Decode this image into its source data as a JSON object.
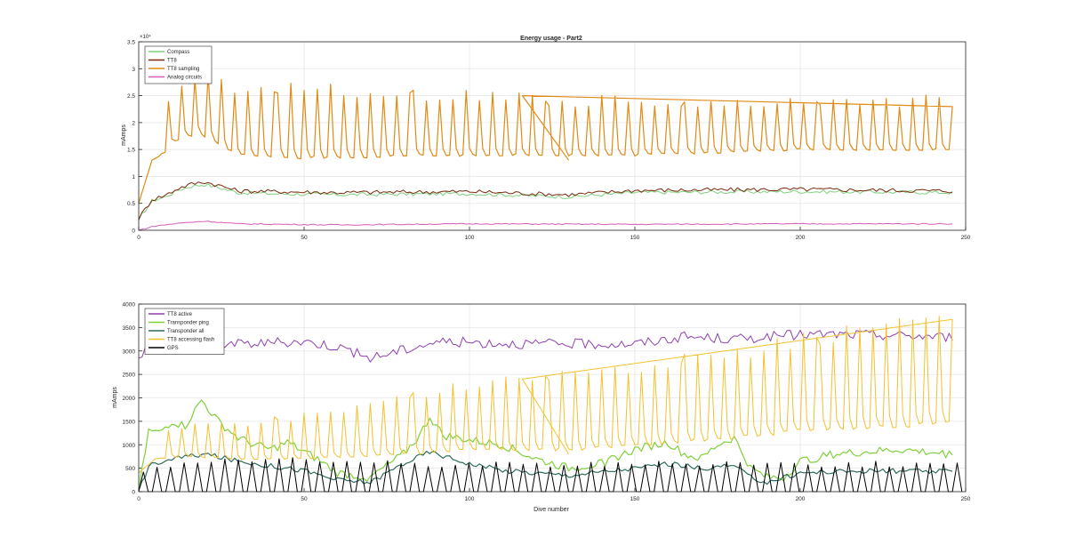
{
  "colors": {
    "compass": "#7fd17f",
    "tt8": "#7a2a0c",
    "tt8_sampling": "#e08a14",
    "analog": "#d65cb8",
    "tt8_active": "#8e3fb0",
    "transponder_ping": "#7fd13a",
    "transponder_all": "#2f6b5e",
    "tt8_flash": "#f2c12e",
    "gps": "#000000",
    "grid": "#e6e6e6",
    "axis": "#262626"
  },
  "chart_data": [
    {
      "type": "line",
      "title": "Energy usage - Part2",
      "xlabel": "",
      "ylabel": "mAmps",
      "xlim": [
        0,
        250
      ],
      "ylim": [
        0,
        3.5
      ],
      "y_exponent_label": "×10⁴",
      "grid": true,
      "legend_position": "top-left",
      "xticks": [
        "0",
        "50",
        "100",
        "150",
        "200",
        "250"
      ],
      "yticks": [
        "0",
        "0.5",
        "1",
        "1.5",
        "2",
        "2.5",
        "3",
        "3.5"
      ],
      "series": [
        {
          "name": "Compass",
          "color_key": "compass",
          "kind": "noisy",
          "lw": 1,
          "anchors": [
            [
              0,
              0.2
            ],
            [
              4,
              0.55
            ],
            [
              8,
              0.62
            ],
            [
              12,
              0.75
            ],
            [
              16,
              0.82
            ],
            [
              20,
              0.85
            ],
            [
              25,
              0.78
            ],
            [
              30,
              0.7
            ],
            [
              40,
              0.68
            ],
            [
              60,
              0.66
            ],
            [
              100,
              0.68
            ],
            [
              130,
              0.62
            ],
            [
              150,
              0.7
            ],
            [
              200,
              0.72
            ],
            [
              246,
              0.7
            ]
          ],
          "noise": 0.035
        },
        {
          "name": "TT8",
          "color_key": "tt8",
          "kind": "noisy",
          "lw": 1,
          "anchors": [
            [
              0,
              0.22
            ],
            [
              4,
              0.57
            ],
            [
              8,
              0.65
            ],
            [
              12,
              0.78
            ],
            [
              16,
              0.86
            ],
            [
              20,
              0.9
            ],
            [
              25,
              0.82
            ],
            [
              30,
              0.73
            ],
            [
              40,
              0.72
            ],
            [
              60,
              0.7
            ],
            [
              100,
              0.72
            ],
            [
              130,
              0.66
            ],
            [
              150,
              0.74
            ],
            [
              200,
              0.76
            ],
            [
              246,
              0.73
            ]
          ],
          "noise": 0.04
        },
        {
          "name": "TT8 sampling",
          "color_key": "tt8_sampling",
          "kind": "spiky",
          "lw": 1.2,
          "base": [
            [
              0,
              0.5
            ],
            [
              2,
              0.9
            ],
            [
              4,
              1.3
            ],
            [
              8,
              1.45
            ],
            [
              12,
              1.7
            ],
            [
              18,
              1.8
            ],
            [
              22,
              1.7
            ],
            [
              30,
              1.4
            ],
            [
              50,
              1.35
            ],
            [
              100,
              1.4
            ],
            [
              150,
              1.4
            ],
            [
              200,
              1.5
            ],
            [
              246,
              1.5
            ]
          ],
          "peak": [
            [
              0,
              0.5
            ],
            [
              10,
              2.8
            ],
            [
              20,
              3.2
            ],
            [
              30,
              2.6
            ],
            [
              50,
              2.8
            ],
            [
              100,
              2.6
            ],
            [
              150,
              2.5
            ],
            [
              200,
              2.5
            ],
            [
              246,
              2.55
            ]
          ],
          "period": 4.1,
          "gap": [
            116,
            130,
            2.5,
            1.3
          ]
        },
        {
          "name": "Analog circuits",
          "color_key": "analog",
          "kind": "noisy",
          "lw": 1,
          "anchors": [
            [
              0,
              0.0
            ],
            [
              5,
              0.08
            ],
            [
              12,
              0.13
            ],
            [
              20,
              0.17
            ],
            [
              30,
              0.12
            ],
            [
              60,
              0.1
            ],
            [
              100,
              0.12
            ],
            [
              150,
              0.11
            ],
            [
              200,
              0.12
            ],
            [
              246,
              0.12
            ]
          ],
          "noise": 0.01
        }
      ]
    },
    {
      "type": "line",
      "title": "",
      "xlabel": "Dive number",
      "ylabel": "mAmps",
      "xlim": [
        0,
        250
      ],
      "ylim": [
        0,
        4000
      ],
      "grid": true,
      "legend_position": "top-left",
      "xticks": [
        "0",
        "50",
        "100",
        "150",
        "200",
        "250"
      ],
      "yticks": [
        "0",
        "500",
        "1000",
        "1500",
        "2000",
        "2500",
        "3000",
        "3500",
        "4000"
      ],
      "series": [
        {
          "name": "TT8 active",
          "color_key": "tt8_active",
          "kind": "noisy",
          "lw": 1,
          "anchors": [
            [
              0,
              2900
            ],
            [
              3,
              3100
            ],
            [
              10,
              3250
            ],
            [
              30,
              3150
            ],
            [
              50,
              3200
            ],
            [
              60,
              3100
            ],
            [
              70,
              2850
            ],
            [
              90,
              3200
            ],
            [
              120,
              3150
            ],
            [
              150,
              3150
            ],
            [
              165,
              3300
            ],
            [
              180,
              3250
            ],
            [
              200,
              3350
            ],
            [
              220,
              3350
            ],
            [
              246,
              3300
            ]
          ],
          "noise": 110
        },
        {
          "name": "Transponder ping",
          "color_key": "transponder_ping",
          "kind": "noisy",
          "lw": 1.2,
          "anchors": [
            [
              0,
              0
            ],
            [
              3,
              1300
            ],
            [
              6,
              1250
            ],
            [
              10,
              1500
            ],
            [
              14,
              1400
            ],
            [
              19,
              1950
            ],
            [
              24,
              1500
            ],
            [
              30,
              1150
            ],
            [
              35,
              1000
            ],
            [
              40,
              900
            ],
            [
              45,
              1050
            ],
            [
              50,
              850
            ],
            [
              55,
              650
            ],
            [
              60,
              400
            ],
            [
              70,
              300
            ],
            [
              80,
              800
            ],
            [
              85,
              1200
            ],
            [
              88,
              1600
            ],
            [
              92,
              1200
            ],
            [
              100,
              1100
            ],
            [
              110,
              1000
            ],
            [
              120,
              700
            ],
            [
              130,
              500
            ],
            [
              140,
              600
            ],
            [
              150,
              900
            ],
            [
              160,
              1050
            ],
            [
              165,
              800
            ],
            [
              170,
              700
            ],
            [
              175,
              1000
            ],
            [
              180,
              1150
            ],
            [
              185,
              500
            ],
            [
              190,
              300
            ],
            [
              195,
              300
            ],
            [
              200,
              650
            ],
            [
              210,
              800
            ],
            [
              220,
              850
            ],
            [
              230,
              900
            ],
            [
              246,
              800
            ]
          ],
          "noise": 90
        },
        {
          "name": "Transponder all",
          "color_key": "transponder_all",
          "kind": "noisy",
          "lw": 1.2,
          "anchors": [
            [
              0,
              0
            ],
            [
              3,
              550
            ],
            [
              10,
              700
            ],
            [
              20,
              800
            ],
            [
              30,
              650
            ],
            [
              40,
              550
            ],
            [
              50,
              450
            ],
            [
              60,
              250
            ],
            [
              70,
              200
            ],
            [
              80,
              600
            ],
            [
              88,
              850
            ],
            [
              95,
              700
            ],
            [
              100,
              600
            ],
            [
              110,
              450
            ],
            [
              120,
              400
            ],
            [
              130,
              350
            ],
            [
              150,
              500
            ],
            [
              160,
              600
            ],
            [
              170,
              500
            ],
            [
              180,
              550
            ],
            [
              185,
              300
            ],
            [
              190,
              200
            ],
            [
              200,
              400
            ],
            [
              220,
              450
            ],
            [
              246,
              420
            ]
          ],
          "noise": 55
        },
        {
          "name": "TT8 accessing flash",
          "color_key": "tt8_flash",
          "kind": "spiky",
          "lw": 1,
          "base": [
            [
              0,
              400
            ],
            [
              5,
              700
            ],
            [
              15,
              750
            ],
            [
              30,
              700
            ],
            [
              50,
              700
            ],
            [
              80,
              800
            ],
            [
              100,
              900
            ],
            [
              130,
              900
            ],
            [
              150,
              1000
            ],
            [
              180,
              1150
            ],
            [
              200,
              1300
            ],
            [
              230,
              1400
            ],
            [
              246,
              1500
            ]
          ],
          "peak": [
            [
              0,
              500
            ],
            [
              10,
              1500
            ],
            [
              30,
              1500
            ],
            [
              60,
              1800
            ],
            [
              80,
              2100
            ],
            [
              100,
              2400
            ],
            [
              120,
              2500
            ],
            [
              150,
              2800
            ],
            [
              180,
              3100
            ],
            [
              200,
              3400
            ],
            [
              220,
              3600
            ],
            [
              246,
              3900
            ]
          ],
          "period": 4.1,
          "gap": [
            116,
            130,
            2400,
            800
          ]
        },
        {
          "name": "GPS",
          "color_key": "gps",
          "kind": "gps",
          "lw": 1,
          "period": 4.1,
          "peak": [
            [
              0,
              500
            ],
            [
              12,
              650
            ],
            [
              25,
              700
            ],
            [
              40,
              800
            ],
            [
              55,
              750
            ],
            [
              80,
              650
            ],
            [
              120,
              650
            ],
            [
              150,
              650
            ],
            [
              180,
              700
            ],
            [
              200,
              650
            ],
            [
              246,
              650
            ]
          ]
        }
      ]
    }
  ]
}
